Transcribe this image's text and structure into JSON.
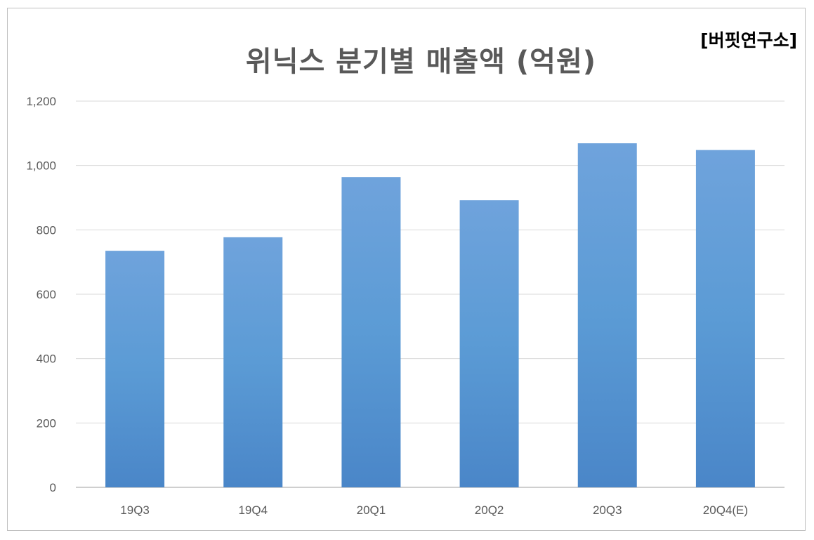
{
  "chart_data": {
    "type": "bar",
    "title": "위닉스 분기별 매출액 (억원)",
    "source": "[버핏연구소]",
    "categories": [
      "19Q3",
      "19Q4",
      "20Q1",
      "20Q2",
      "20Q3",
      "20Q4(E)"
    ],
    "values": [
      735,
      777,
      964,
      892,
      1069,
      1048
    ],
    "ylim": [
      0,
      1200
    ],
    "yticks": [
      0,
      200,
      400,
      600,
      800,
      1000,
      1200
    ],
    "ytick_labels": [
      "0",
      "200",
      "400",
      "600",
      "800",
      "1,000",
      "1,200"
    ],
    "grid": true,
    "bar_color_top": "#6fa3dc",
    "bar_color_mid": "#5b9bd5",
    "bar_color_bottom": "#4a86c8"
  }
}
